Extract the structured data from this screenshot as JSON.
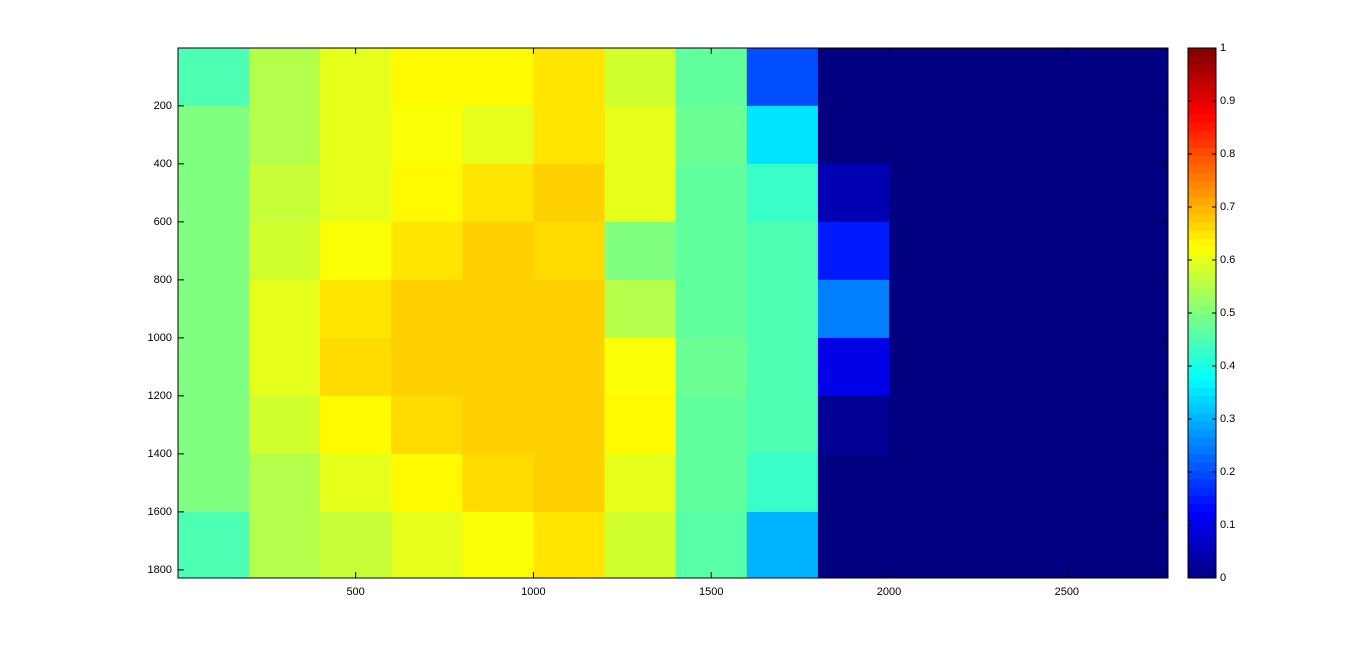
{
  "chart_data": {
    "type": "heatmap",
    "xbins": [
      0,
      200,
      400,
      600,
      800,
      1000,
      1200,
      1400,
      1600,
      1800,
      2000,
      2200,
      2400,
      2600,
      2800
    ],
    "ybins": [
      0,
      200,
      400,
      600,
      800,
      1000,
      1200,
      1400,
      1600,
      1800,
      1828
    ],
    "values": [
      [
        0.45,
        0.55,
        0.6,
        0.63,
        0.63,
        0.65,
        0.58,
        0.47,
        0.2,
        0,
        0,
        0,
        0,
        0
      ],
      [
        0.5,
        0.55,
        0.6,
        0.62,
        0.6,
        0.65,
        0.6,
        0.48,
        0.35,
        0,
        0,
        0,
        0,
        0
      ],
      [
        0.5,
        0.57,
        0.6,
        0.63,
        0.65,
        0.67,
        0.6,
        0.47,
        0.43,
        0.05,
        0,
        0,
        0,
        0
      ],
      [
        0.5,
        0.58,
        0.62,
        0.65,
        0.67,
        0.66,
        0.5,
        0.47,
        0.45,
        0.15,
        0,
        0,
        0,
        0
      ],
      [
        0.5,
        0.6,
        0.65,
        0.67,
        0.67,
        0.67,
        0.55,
        0.47,
        0.45,
        0.25,
        0,
        0,
        0,
        0
      ],
      [
        0.5,
        0.6,
        0.66,
        0.67,
        0.67,
        0.67,
        0.62,
        0.48,
        0.45,
        0.1,
        0,
        0,
        0,
        0
      ],
      [
        0.5,
        0.58,
        0.63,
        0.66,
        0.67,
        0.67,
        0.63,
        0.47,
        0.45,
        0.02,
        0,
        0,
        0,
        0
      ],
      [
        0.5,
        0.55,
        0.6,
        0.63,
        0.66,
        0.67,
        0.6,
        0.47,
        0.43,
        0,
        0,
        0,
        0,
        0
      ],
      [
        0.45,
        0.55,
        0.57,
        0.6,
        0.62,
        0.65,
        0.58,
        0.46,
        0.3,
        0,
        0,
        0,
        0,
        0
      ],
      [
        0.45,
        0.55,
        0.57,
        0.6,
        0.62,
        0.65,
        0.58,
        0.46,
        0.3,
        0,
        0,
        0,
        0,
        0
      ]
    ],
    "xlim": [
      0.5,
      2784.5
    ],
    "ylim": [
      0.5,
      1828
    ],
    "xticks": [
      500,
      1000,
      1500,
      2000,
      2500
    ],
    "yticks": [
      200,
      400,
      600,
      800,
      1000,
      1200,
      1400,
      1600,
      1800
    ],
    "y_reversed": true,
    "colormap": "jet",
    "clim": [
      0,
      1
    ],
    "colorbar_ticks": [
      0,
      0.1,
      0.2,
      0.3,
      0.4,
      0.5,
      0.6,
      0.7,
      0.8,
      0.9,
      1
    ]
  }
}
